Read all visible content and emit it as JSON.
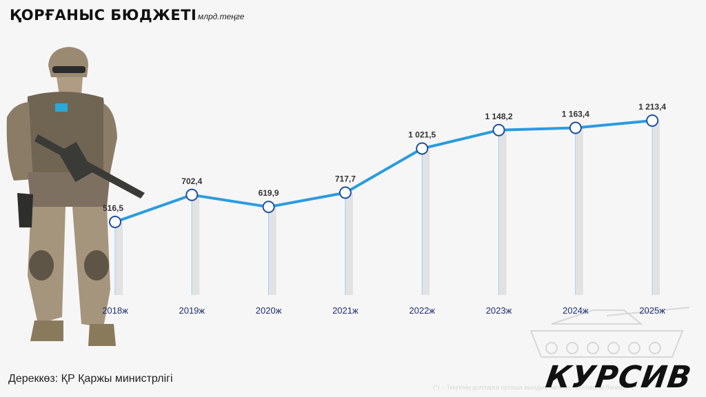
{
  "header": {
    "title": "ҚОРҒАНЫС БЮДЖЕТІ",
    "unit": "млрд.теңге"
  },
  "footer": {
    "source": "Дереккөз: ҚР Қаржы министрлігі",
    "footnote": "(*) – Теңгенің долларға орташа жылдық бағамы. Жоспарлы бағамы",
    "brand": "КУРСИВ"
  },
  "colors": {
    "line": "#2b9be0",
    "marker_fill": "#ffffff",
    "marker_stroke": "#1f4f9e",
    "drop_line": "#8cc7ee",
    "tick_label": "#1f2f6e",
    "value_label": "#333333"
  },
  "illustration": {
    "left": "soldier-figure",
    "right": "tank-silhouette"
  },
  "chart_data": {
    "type": "line",
    "title": "ҚОРҒАНЫС БЮДЖЕТІ",
    "ylabel": "млрд.теңге",
    "categories": [
      "2018ж",
      "2019ж",
      "2020ж",
      "2021ж",
      "2022ж",
      "2023ж",
      "2024ж",
      "2025ж"
    ],
    "values": [
      516.5,
      702.4,
      619.9,
      717.7,
      1021.5,
      1148.2,
      1163.4,
      1213.4
    ],
    "value_labels": [
      "516,5",
      "702,4",
      "619,9",
      "717,7",
      "1 021,5",
      "1 148,2",
      "1 163,4",
      "1 213,4"
    ],
    "grid": false,
    "legend": "none"
  }
}
